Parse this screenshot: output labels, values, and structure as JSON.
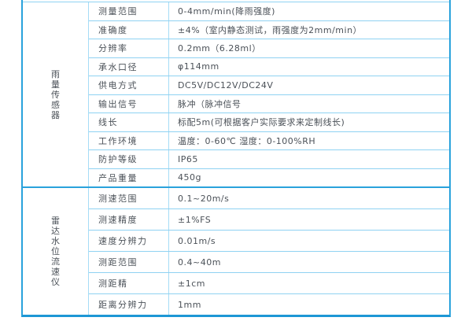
{
  "table": {
    "sections": [
      {
        "category": "雨量传感器",
        "rows": [
          {
            "label": "测量范围",
            "value": "0-4mm/min(降雨强度)"
          },
          {
            "label": "准确度",
            "value": "±4%（室内静态测试，雨强度为2mm/min）"
          },
          {
            "label": "分辨率",
            "value": "0.2mm（6.28ml）"
          },
          {
            "label": "承水口径",
            "value": "φ114mm"
          },
          {
            "label": "供电方式",
            "value": "DC5V/DC12V/DC24V"
          },
          {
            "label": "输出信号",
            "value": "脉冲（脉冲信号"
          },
          {
            "label": "线长",
            "value": "标配5m(可根据客户实际要求来定制线长)"
          },
          {
            "label": "工作环境",
            "value": "温度：0-60℃ 湿度：0-100%RH"
          },
          {
            "label": "防护等级",
            "value": "IP65"
          },
          {
            "label": "产品重量",
            "value": "450g"
          }
        ]
      },
      {
        "category": "雷达水位流速仪",
        "rows": [
          {
            "label": "测速范围",
            "value": "0.1~20m/s"
          },
          {
            "label": "测速精度",
            "value": "±1%FS"
          },
          {
            "label": "速度分辨力",
            "value": "0.01m/s"
          },
          {
            "label": "测距范围",
            "value": "0.4~40m"
          },
          {
            "label": "测距精",
            "value": "±1cm"
          },
          {
            "label": "距离分辨力",
            "value": "1mm"
          }
        ]
      }
    ]
  },
  "colors": {
    "outer_border": "#2aa2dc",
    "bottom_border": "#1d97d5",
    "grid_line_horizontal": "#8fd2f2",
    "grid_line_vertical": "#a5dcf6",
    "text": "#4b5158",
    "background": "#ffffff"
  }
}
